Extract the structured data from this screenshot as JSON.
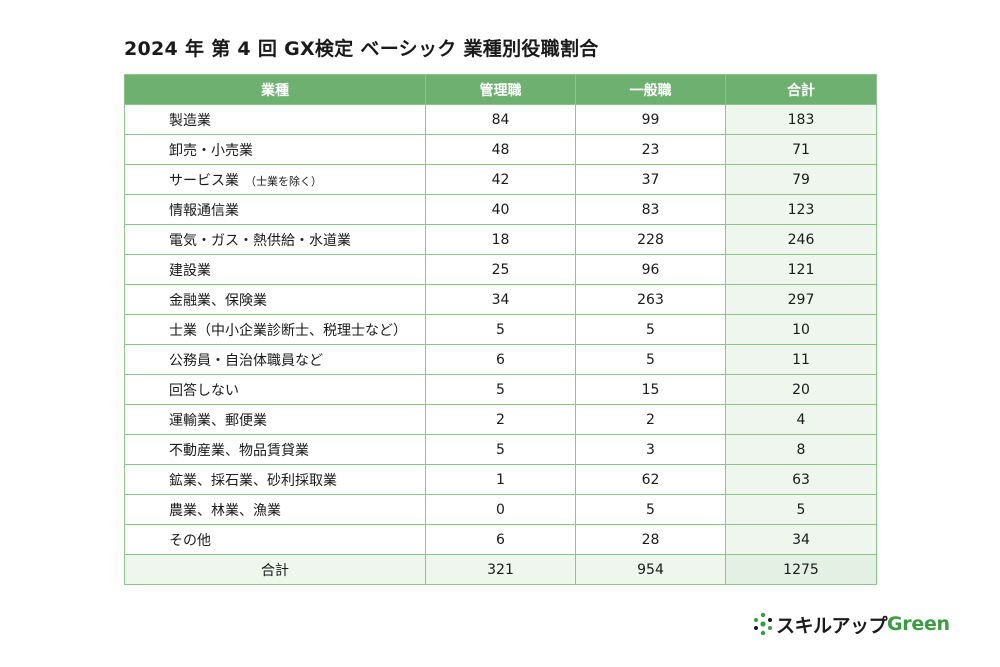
{
  "title": "2024 年 第 4 回 GX検定 ベーシック 業種別役職割合",
  "headers": [
    "業種",
    "管理職",
    "一般職",
    "合計"
  ],
  "rows": [
    {
      "industry": "製造業",
      "note": "",
      "manager": "84",
      "general": "99",
      "total": "183"
    },
    {
      "industry": "卸売・小売業",
      "note": "",
      "manager": "48",
      "general": "23",
      "total": "71"
    },
    {
      "industry": "サービス業",
      "note": "（士業を除く）",
      "manager": "42",
      "general": "37",
      "total": "79"
    },
    {
      "industry": "情報通信業",
      "note": "",
      "manager": "40",
      "general": "83",
      "total": "123"
    },
    {
      "industry": "電気・ガス・熱供給・水道業",
      "note": "",
      "manager": "18",
      "general": "228",
      "total": "246"
    },
    {
      "industry": "建設業",
      "note": "",
      "manager": "25",
      "general": "96",
      "total": "121"
    },
    {
      "industry": "金融業、保険業",
      "note": "",
      "manager": "34",
      "general": "263",
      "total": "297"
    },
    {
      "industry": "士業（中小企業診断士、税理士など）",
      "note": "",
      "manager": "5",
      "general": "5",
      "total": "10"
    },
    {
      "industry": "公務員・自治体職員など",
      "note": "",
      "manager": "6",
      "general": "5",
      "total": "11"
    },
    {
      "industry": "回答しない",
      "note": "",
      "manager": "5",
      "general": "15",
      "total": "20"
    },
    {
      "industry": "運輸業、郵便業",
      "note": "",
      "manager": "2",
      "general": "2",
      "total": "4"
    },
    {
      "industry": "不動産業、物品賃貸業",
      "note": "",
      "manager": "5",
      "general": "3",
      "total": "8"
    },
    {
      "industry": "鉱業、採石業、砂利採取業",
      "note": "",
      "manager": "1",
      "general": "62",
      "total": "63"
    },
    {
      "industry": "農業、林業、漁業",
      "note": "",
      "manager": "0",
      "general": "5",
      "total": "5"
    },
    {
      "industry": "その他",
      "note": "",
      "manager": "6",
      "general": "28",
      "total": "34"
    }
  ],
  "total_row": {
    "label": "合計",
    "manager": "321",
    "general": "954",
    "total": "1275"
  },
  "logo": {
    "text": "スキルアップ",
    "green": "Green"
  },
  "colors": {
    "header": "#6db06f",
    "border": "#8cc48a",
    "total_bg": "#eef6ee",
    "logo_green": "#3a9d41"
  }
}
